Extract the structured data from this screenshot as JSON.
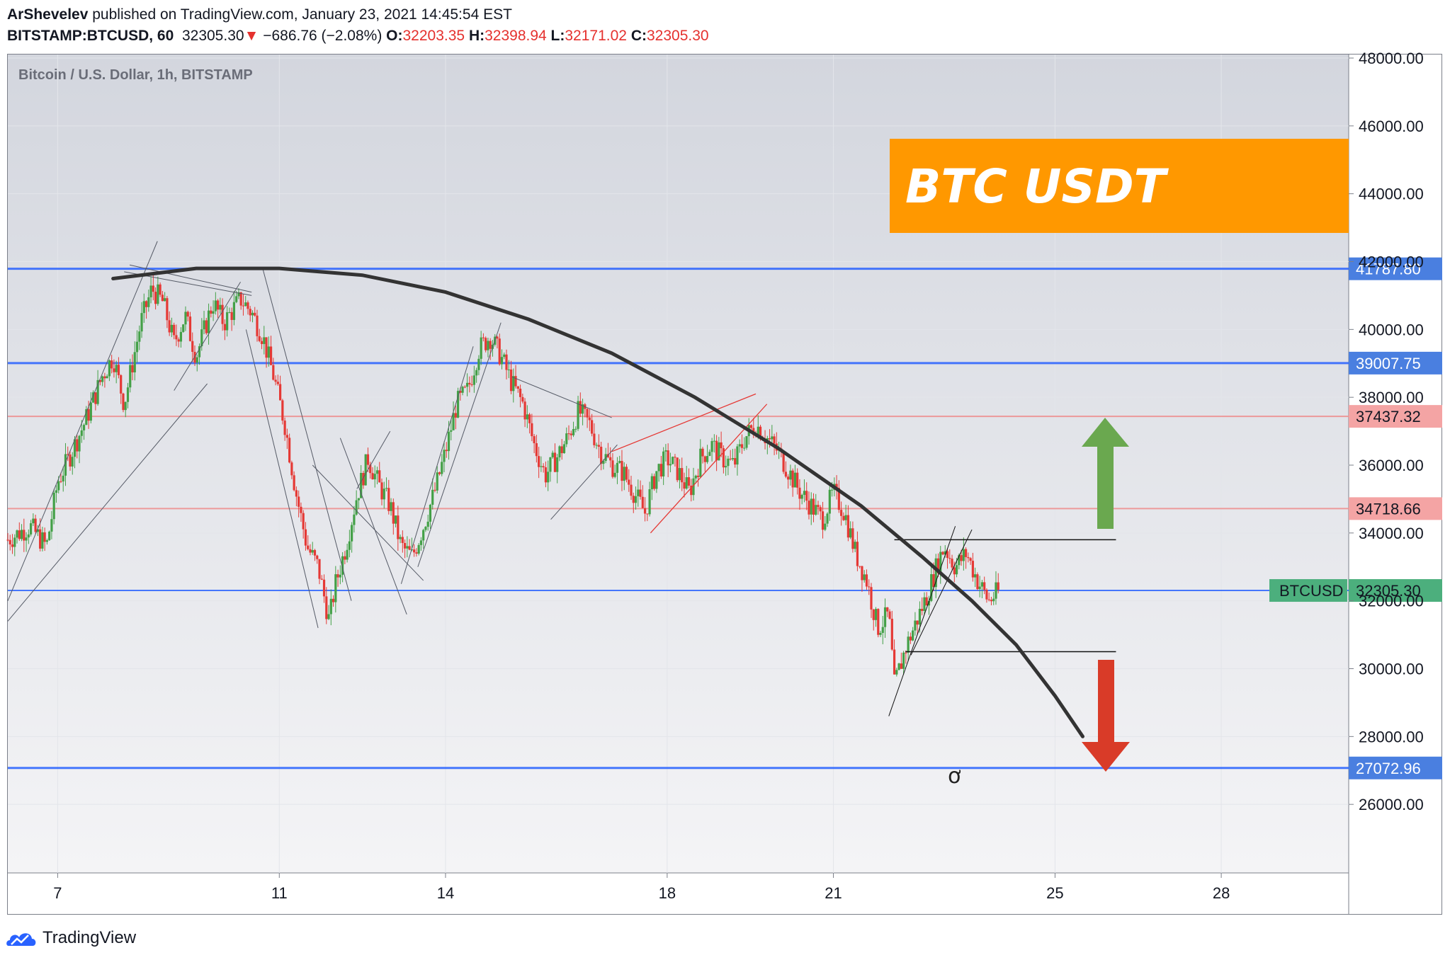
{
  "header": {
    "author": "ArShevelev",
    "published_text": "published on TradingView.com, January 23, 2021 14:45:54 EST",
    "symbol": "BITSTAMP:BTCUSD, 60",
    "last": "32305.30",
    "down_arrow": "▼",
    "change": "−686.76 (−2.08%)",
    "o_label": "O:",
    "o_value": "32203.35",
    "h_label": "H:",
    "h_value": "32398.94",
    "l_label": "L:",
    "l_value": "32171.02",
    "c_label": "C:",
    "c_value": "32305.30"
  },
  "footer": {
    "brand": "TradingView",
    "logo_icon": "tradingview-cloud-icon"
  },
  "chart_data": {
    "type": "candlestick",
    "title": "Bitcoin / U.S. Dollar, 1h, BITSTAMP",
    "banner": "BTC USDT",
    "symbol_tag": "BTCUSD",
    "ylim": [
      24000,
      48000
    ],
    "x_ticks": [
      "7",
      "11",
      "14",
      "18",
      "21",
      "25",
      "28"
    ],
    "x_tick_positions": [
      7,
      11,
      14,
      18,
      21,
      25,
      28
    ],
    "xlim": [
      6.1,
      30.3
    ],
    "y_ticks": [
      "26000.00",
      "28000.00",
      "30000.00",
      "32000.00",
      "34000.00",
      "36000.00",
      "38000.00",
      "40000.00",
      "42000.00",
      "44000.00",
      "46000.00",
      "48000.00"
    ],
    "y_tick_values": [
      26000,
      28000,
      30000,
      32000,
      34000,
      36000,
      38000,
      40000,
      42000,
      44000,
      46000,
      48000
    ],
    "price_levels": [
      {
        "label": "41787.80",
        "value": 41787.8,
        "style": "blue"
      },
      {
        "label": "39007.75",
        "value": 39007.75,
        "style": "blue"
      },
      {
        "label": "37437.32",
        "value": 37437.32,
        "style": "pink"
      },
      {
        "label": "34718.66",
        "value": 34718.66,
        "style": "pink"
      },
      {
        "label": "32305.30",
        "value": 32305.3,
        "style": "green"
      },
      {
        "label": "27072.96",
        "value": 27072.96,
        "style": "blue"
      }
    ],
    "close_path": [
      [
        6.1,
        33.8
      ],
      [
        6.5,
        34.2
      ],
      [
        6.8,
        33.6
      ],
      [
        7.0,
        35.5
      ],
      [
        7.2,
        36.2
      ],
      [
        7.5,
        37.3
      ],
      [
        7.8,
        38.6
      ],
      [
        8.0,
        39.2
      ],
      [
        8.2,
        37.8
      ],
      [
        8.5,
        40.2
      ],
      [
        8.7,
        41.2
      ],
      [
        8.9,
        40.8
      ],
      [
        9.1,
        39.6
      ],
      [
        9.3,
        40.4
      ],
      [
        9.5,
        39.2
      ],
      [
        9.8,
        40.8
      ],
      [
        10.0,
        40.2
      ],
      [
        10.3,
        40.9
      ],
      [
        10.5,
        40.5
      ],
      [
        10.7,
        39.8
      ],
      [
        10.9,
        38.6
      ],
      [
        11.1,
        37.2
      ],
      [
        11.3,
        35.2
      ],
      [
        11.5,
        33.6
      ],
      [
        11.7,
        33.0
      ],
      [
        11.9,
        31.4
      ],
      [
        12.0,
        32.4
      ],
      [
        12.2,
        33.6
      ],
      [
        12.4,
        35.1
      ],
      [
        12.6,
        36.2
      ],
      [
        12.8,
        35.4
      ],
      [
        13.0,
        34.8
      ],
      [
        13.2,
        33.6
      ],
      [
        13.4,
        33.3
      ],
      [
        13.6,
        34.2
      ],
      [
        13.8,
        35.2
      ],
      [
        14.0,
        36.4
      ],
      [
        14.2,
        37.8
      ],
      [
        14.4,
        38.2
      ],
      [
        14.6,
        39.4
      ],
      [
        14.8,
        39.8
      ],
      [
        15.0,
        39.2
      ],
      [
        15.2,
        38.4
      ],
      [
        15.4,
        37.8
      ],
      [
        15.6,
        36.6
      ],
      [
        15.8,
        35.7
      ],
      [
        16.0,
        36.2
      ],
      [
        16.2,
        36.8
      ],
      [
        16.4,
        37.6
      ],
      [
        16.6,
        37.2
      ],
      [
        16.8,
        36.4
      ],
      [
        17.0,
        36.0
      ],
      [
        17.2,
        35.8
      ],
      [
        17.4,
        35.2
      ],
      [
        17.6,
        34.6
      ],
      [
        17.8,
        35.8
      ],
      [
        18.0,
        36.2
      ],
      [
        18.2,
        35.8
      ],
      [
        18.4,
        35.2
      ],
      [
        18.6,
        36.2
      ],
      [
        18.8,
        36.6
      ],
      [
        19.0,
        36.2
      ],
      [
        19.2,
        36.0
      ],
      [
        19.4,
        36.8
      ],
      [
        19.6,
        37.2
      ],
      [
        19.8,
        36.8
      ],
      [
        20.0,
        36.4
      ],
      [
        20.2,
        35.8
      ],
      [
        20.4,
        35.2
      ],
      [
        20.6,
        34.8
      ],
      [
        20.8,
        34.4
      ],
      [
        21.0,
        35.2
      ],
      [
        21.2,
        34.6
      ],
      [
        21.4,
        33.4
      ],
      [
        21.6,
        32.6
      ],
      [
        21.8,
        31.2
      ],
      [
        22.0,
        31.6
      ],
      [
        22.1,
        29.5
      ],
      [
        22.3,
        30.6
      ],
      [
        22.5,
        31.4
      ],
      [
        22.7,
        32.2
      ],
      [
        22.9,
        33.2
      ],
      [
        23.0,
        33.6
      ],
      [
        23.2,
        33.0
      ],
      [
        23.4,
        33.4
      ],
      [
        23.6,
        32.6
      ],
      [
        23.8,
        32.0
      ],
      [
        24.0,
        32.3
      ]
    ]
  }
}
